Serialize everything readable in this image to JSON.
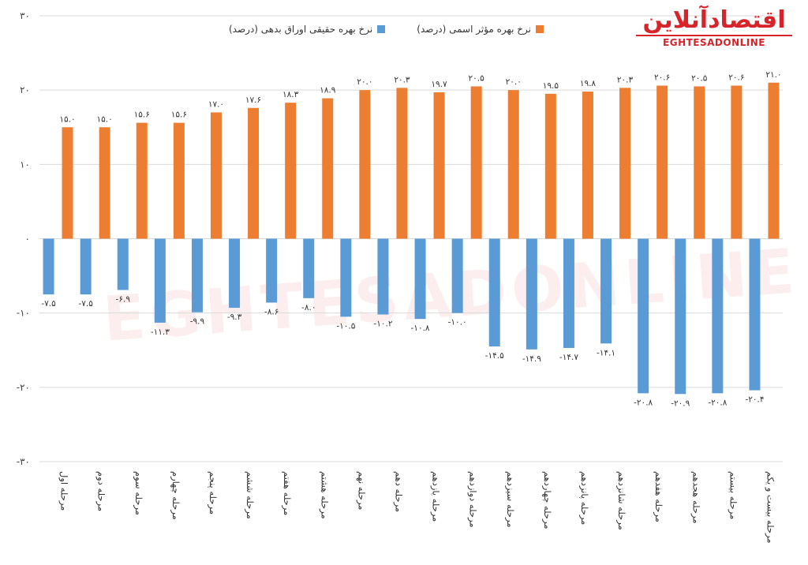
{
  "legend": {
    "nominal_label": "نرخ بهره مؤثر اسمی (درصد)",
    "real_label": "نرخ بهره حقیقی اوراق بدهی (درصد)"
  },
  "logo": {
    "fa": "اقتصادآنلاین",
    "en": "EGHTESADONLINE"
  },
  "watermark": "EGHTESADONLINE",
  "colors": {
    "nominal": "#ED7D31",
    "real": "#5B9BD5",
    "logo": "#d8232a"
  },
  "chart_data": {
    "type": "bar",
    "ylim": [
      -30,
      30
    ],
    "yticks": [
      30,
      20,
      10,
      0,
      -10,
      -20,
      -30
    ],
    "ytick_labels": [
      "۳۰",
      "۲۰",
      "۱۰",
      "۰",
      "-۱۰",
      "-۲۰",
      "-۳۰"
    ],
    "grid": true,
    "legend_position": "top",
    "categories": [
      "مرحله اول",
      "مرحله دوم",
      "مرحله سوم",
      "مرحله چهارم",
      "مرحله پنجم",
      "مرحله ششم",
      "مرحله هفتم",
      "مرحله هشتم",
      "مرحله نهم",
      "مرحله دهم",
      "مرحله یازدهم",
      "مرحله دوازدهم",
      "مرحله سیزدهم",
      "مرحله چهاردهم",
      "مرحله پانزدهم",
      "مرحله شانزدهم",
      "مرحله هفدهم",
      "مرحله هجدهم",
      "مرحله بیستم",
      "مرحله بیست و یکم"
    ],
    "series": [
      {
        "name": "نرخ بهره مؤثر اسمی (درصد)",
        "values": [
          15.0,
          15.0,
          15.6,
          15.6,
          17.0,
          17.6,
          18.3,
          18.9,
          20.0,
          20.3,
          19.7,
          20.5,
          20.0,
          19.5,
          19.8,
          20.3,
          20.6,
          20.5,
          20.6,
          21.0
        ],
        "labels": [
          "۱۵.۰",
          "۱۵.۰",
          "۱۵.۶",
          "۱۵.۶",
          "۱۷.۰",
          "۱۷.۶",
          "۱۸.۳",
          "۱۸.۹",
          "۲۰.۰",
          "۲۰.۳",
          "۱۹.۷",
          "۲۰.۵",
          "۲۰.۰",
          "۱۹.۵",
          "۱۹.۸",
          "۲۰.۳",
          "۲۰.۶",
          "۲۰.۵",
          "۲۰.۶",
          "۲۱.۰"
        ]
      },
      {
        "name": "نرخ بهره حقیقی اوراق بدهی (درصد)",
        "values": [
          -7.5,
          -7.5,
          -6.9,
          -11.3,
          -9.9,
          -9.3,
          -8.6,
          -8.0,
          -10.5,
          -10.2,
          -10.8,
          -10.0,
          -14.5,
          -14.9,
          -14.7,
          -14.1,
          -20.8,
          -20.9,
          -20.8,
          -20.4
        ],
        "labels": [
          "-۷.۵",
          "-۷.۵",
          "-۶.۹",
          "-۱۱.۳",
          "-۹.۹",
          "-۹.۳",
          "-۸.۶",
          "-۸.۰",
          "-۱۰.۵",
          "-۱۰.۲",
          "-۱۰.۸",
          "-۱۰.۰",
          "-۱۴.۵",
          "-۱۴.۹",
          "-۱۴.۷",
          "-۱۴.۱",
          "-۲۰.۸",
          "-۲۰.۹",
          "-۲۰.۸",
          "-۲۰.۴"
        ]
      }
    ]
  }
}
